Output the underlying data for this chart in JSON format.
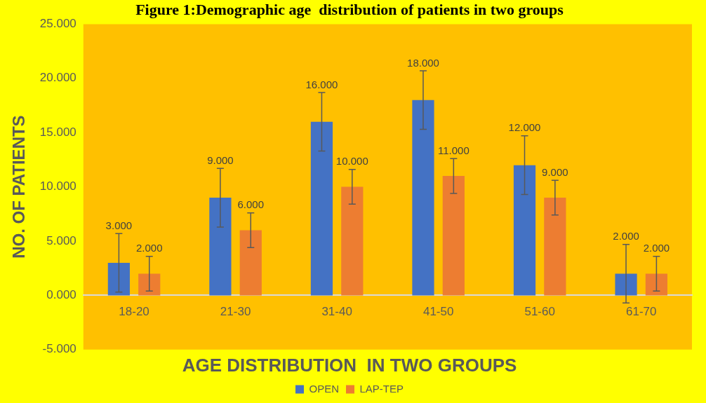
{
  "chart_data": {
    "type": "bar",
    "title": "Figure 1:Demographic age  distribution of patients in two groups",
    "xlabel": "AGE DISTRIBUTION  IN TWO GROUPS",
    "ylabel": "NO. OF PATIENTS",
    "categories": [
      "18-20",
      "21-30",
      "31-40",
      "41-50",
      "51-60",
      "61-70"
    ],
    "series": [
      {
        "name": "OPEN",
        "color": "#4472c4",
        "values": [
          3,
          9,
          16,
          18,
          12,
          2
        ],
        "errors": [
          2.7,
          2.7,
          2.7,
          2.7,
          2.7,
          2.7
        ],
        "value_labels": [
          "3.000",
          "9.000",
          "16.000",
          "18.000",
          "12.000",
          "2.000"
        ]
      },
      {
        "name": "LAP-TEP",
        "color": "#ed7d31",
        "values": [
          2,
          6,
          10,
          11,
          9,
          2
        ],
        "errors": [
          1.6,
          1.6,
          1.6,
          1.6,
          1.6,
          1.6
        ],
        "value_labels": [
          "2.000",
          "6.000",
          "10.000",
          "11.000",
          "9.000",
          "2.000"
        ]
      }
    ],
    "ylim": [
      -5,
      25
    ],
    "yticks": [
      {
        "value": -5,
        "label": "-5.000"
      },
      {
        "value": 0,
        "label": "0.000"
      },
      {
        "value": 5,
        "label": "5.000"
      },
      {
        "value": 10,
        "label": "10.000"
      },
      {
        "value": 15,
        "label": "15.000"
      },
      {
        "value": 20,
        "label": "20.000"
      },
      {
        "value": 25,
        "label": "25.000"
      }
    ],
    "grid": false,
    "legend": "bottom"
  }
}
